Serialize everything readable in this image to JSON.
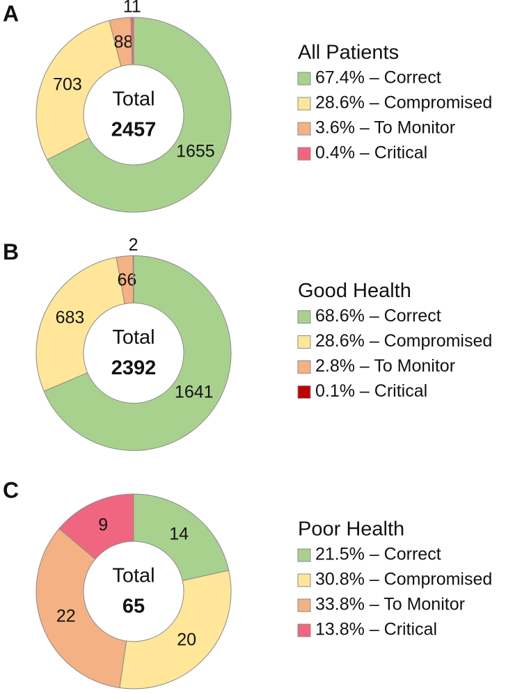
{
  "chart_data": [
    {
      "type": "donut",
      "panel": "A",
      "title": "All Patients",
      "total_label": "Total",
      "total": 2457,
      "categories": [
        "Correct",
        "Compromised",
        "To Monitor",
        "Critical"
      ],
      "values": [
        1655,
        703,
        88,
        11
      ],
      "colors": [
        "#a9d18e",
        "#ffe699",
        "#f4b183",
        "#f06680"
      ],
      "legend_labels": [
        "67.4% – Correct",
        "28.6% – Compromised",
        "3.6% – To Monitor",
        "0.4% – Critical"
      ]
    },
    {
      "type": "donut",
      "panel": "B",
      "title": "Good Health",
      "total_label": "Total",
      "total": 2392,
      "categories": [
        "Correct",
        "Compromised",
        "To Monitor",
        "Critical"
      ],
      "values": [
        1641,
        683,
        66,
        2
      ],
      "colors": [
        "#a9d18e",
        "#ffe699",
        "#f4b183",
        "#c00000"
      ],
      "legend_labels": [
        "68.6% – Correct",
        "28.6% – Compromised",
        "2.8% – To Monitor",
        "0.1% – Critical"
      ]
    },
    {
      "type": "donut",
      "panel": "C",
      "title": "Poor Health",
      "total_label": "Total",
      "total": 65,
      "categories": [
        "Correct",
        "Compromised",
        "To Monitor",
        "Critical"
      ],
      "values": [
        14,
        20,
        22,
        9
      ],
      "colors": [
        "#a9d18e",
        "#ffe699",
        "#f4b183",
        "#f06680"
      ],
      "legend_labels": [
        "21.5% – Correct",
        "30.8% – Compromised",
        "33.8% – To Monitor",
        "13.8% – Critical"
      ]
    }
  ]
}
